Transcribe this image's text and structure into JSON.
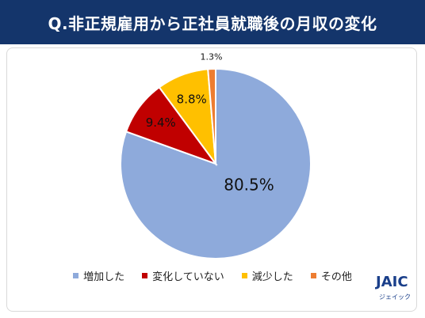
{
  "header": {
    "title": "Q.非正規雇用から正社員就職後の月収の変化"
  },
  "chart_data": {
    "type": "pie",
    "title": "Q.非正規雇用から正社員就職後の月収の変化",
    "categories": [
      "増加した",
      "変化していない",
      "減少した",
      "その他"
    ],
    "values": [
      80.5,
      9.4,
      8.8,
      1.3
    ],
    "value_labels": [
      "80.5%",
      "9.4%",
      "8.8%",
      "1.3%"
    ],
    "colors": [
      "#8eaadb",
      "#c00000",
      "#ffc000",
      "#ed7d31"
    ],
    "start_angle": "12 o'clock",
    "direction": "clockwise",
    "legend_position": "bottom"
  },
  "logo": {
    "main": "JAIC",
    "sub": "ジェイック"
  }
}
